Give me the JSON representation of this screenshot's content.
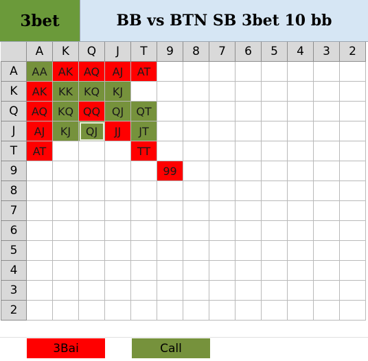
{
  "header": {
    "badge_label": "3bet",
    "title": "BB vs BTN SB 3bet 10 bb",
    "badge_color": "#6b9a3a",
    "title_bg": "#d6e6f4"
  },
  "ranks": [
    "A",
    "K",
    "Q",
    "J",
    "T",
    "9",
    "8",
    "7",
    "6",
    "5",
    "4",
    "3",
    "2"
  ],
  "cells": [
    {
      "r": 0,
      "c": 0,
      "t": "AA",
      "k": "green"
    },
    {
      "r": 0,
      "c": 1,
      "t": "AK",
      "k": "red"
    },
    {
      "r": 0,
      "c": 2,
      "t": "AQ",
      "k": "red"
    },
    {
      "r": 0,
      "c": 3,
      "t": "AJ",
      "k": "red"
    },
    {
      "r": 0,
      "c": 4,
      "t": "AT",
      "k": "red"
    },
    {
      "r": 1,
      "c": 0,
      "t": "AK",
      "k": "red"
    },
    {
      "r": 1,
      "c": 1,
      "t": "KK",
      "k": "green"
    },
    {
      "r": 1,
      "c": 2,
      "t": "KQ",
      "k": "green"
    },
    {
      "r": 1,
      "c": 3,
      "t": "KJ",
      "k": "green"
    },
    {
      "r": 2,
      "c": 0,
      "t": "AQ",
      "k": "red"
    },
    {
      "r": 2,
      "c": 1,
      "t": "KQ",
      "k": "green"
    },
    {
      "r": 2,
      "c": 2,
      "t": "QQ",
      "k": "red"
    },
    {
      "r": 2,
      "c": 3,
      "t": "QJ",
      "k": "green"
    },
    {
      "r": 2,
      "c": 4,
      "t": "QT",
      "k": "green"
    },
    {
      "r": 3,
      "c": 0,
      "t": "AJ",
      "k": "red"
    },
    {
      "r": 3,
      "c": 1,
      "t": "KJ",
      "k": "green"
    },
    {
      "r": 3,
      "c": 2,
      "t": "QJ",
      "k": "green",
      "selected": true
    },
    {
      "r": 3,
      "c": 3,
      "t": "JJ",
      "k": "red"
    },
    {
      "r": 3,
      "c": 4,
      "t": "JT",
      "k": "green"
    },
    {
      "r": 4,
      "c": 0,
      "t": "AT",
      "k": "red"
    },
    {
      "r": 4,
      "c": 4,
      "t": "TT",
      "k": "red"
    },
    {
      "r": 5,
      "c": 5,
      "t": "99",
      "k": "red"
    }
  ],
  "legend": {
    "raise_label": "3Bai",
    "call_label": "Call",
    "raise_color": "#ff0000",
    "call_color": "#76923c"
  }
}
